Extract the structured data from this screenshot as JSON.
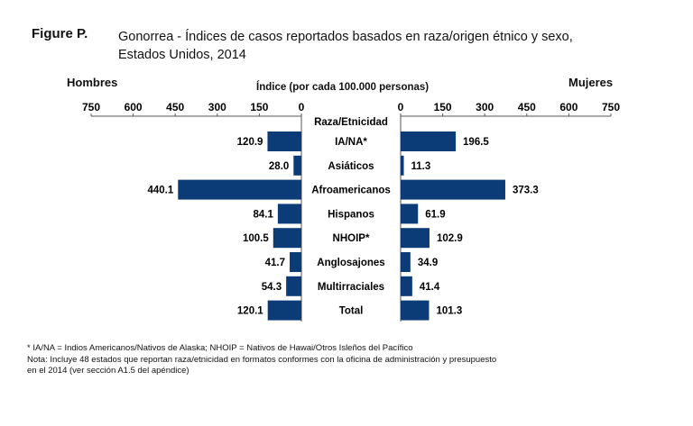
{
  "figure_label": "Figure P.",
  "title_line1": "Gonorrea - Índices de casos reportados basados en raza/origen étnico y sexo,",
  "title_line2": "Estados Unidos, 2014",
  "chart_data": {
    "type": "bar",
    "orientation": "horizontal-butterfly",
    "title": "Gonorrea - Índices de casos reportados basados en raza/origen étnico y sexo, Estados Unidos, 2014",
    "xlabel": "Índice (por cada 100.000 personas)",
    "category_header": "Raza/Etnicidad",
    "left_label": "Hombres",
    "right_label": "Mujeres",
    "xlim": [
      0,
      750
    ],
    "ticks": [
      0,
      150,
      300,
      450,
      600,
      750
    ],
    "categories": [
      "IA/NA*",
      "Asiáticos",
      "Afroamericanos",
      "Hispanos",
      "NHOIP*",
      "Anglosajones",
      "Multirraciales",
      "Total"
    ],
    "series": [
      {
        "name": "Hombres",
        "values": [
          120.9,
          28.0,
          440.1,
          84.1,
          100.5,
          41.7,
          54.3,
          120.1
        ]
      },
      {
        "name": "Mujeres",
        "values": [
          196.5,
          11.3,
          373.3,
          61.9,
          102.9,
          34.9,
          41.4,
          101.3
        ]
      }
    ],
    "bar_color": "#0c3c78"
  },
  "footnote1": "* IA/NA = Indios Americanos/Nativos de Alaska; NHOIP = Nativos de Hawai/Otros Isleños del Pacífico",
  "footnote2": "Nota: Incluye 48 estados que reportan raza/etnicidad en formatos conformes con la oficina de administración y presupuesto",
  "footnote3": "en el 2014 (ver sección A1.5 del apéndice)"
}
